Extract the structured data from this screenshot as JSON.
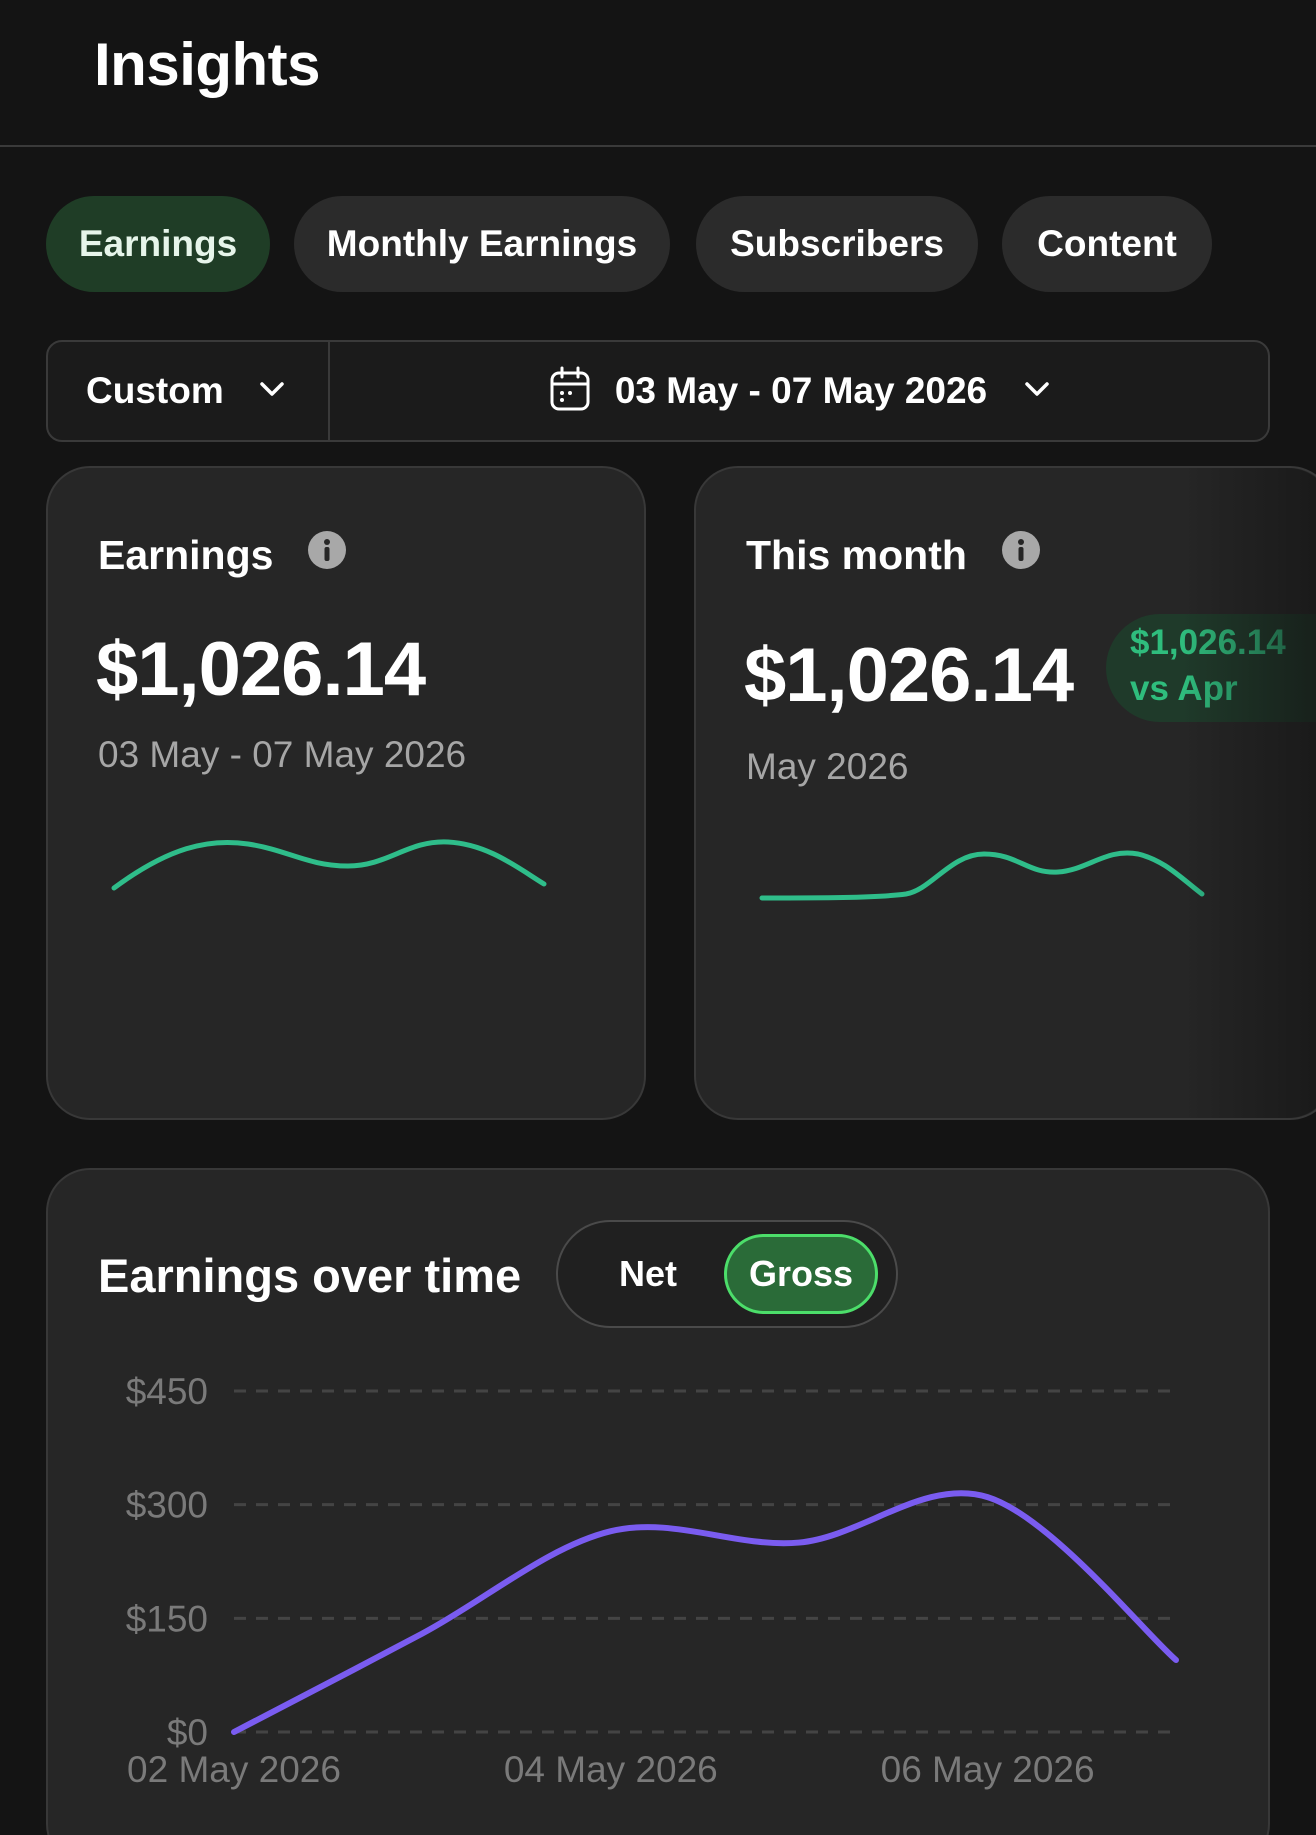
{
  "header": {
    "title": "Insights"
  },
  "tabs": [
    {
      "label": "Earnings",
      "active": true
    },
    {
      "label": "Monthly Earnings",
      "active": false
    },
    {
      "label": "Subscribers",
      "active": false
    },
    {
      "label": "Content",
      "active": false
    }
  ],
  "date_filter": {
    "range_type": "Custom",
    "date_range": "03 May - 07 May 2026",
    "calendar_icon": "calendar-icon",
    "chevron_icon": "chevron-down-icon"
  },
  "cards": {
    "earnings": {
      "title": "Earnings",
      "value": "$1,026.14",
      "period": "03 May - 07 May 2026",
      "info_icon": "info-icon"
    },
    "this_month": {
      "title": "This month",
      "value": "$1,026.14",
      "delta_line1": "$1,026.14",
      "delta_line2": "vs Apr",
      "period": "May 2026",
      "info_icon": "info-icon"
    }
  },
  "earnings_over_time": {
    "title": "Earnings over time",
    "toggle": {
      "net": "Net",
      "gross": "Gross",
      "selected": "Gross"
    }
  },
  "colors": {
    "background": "#141414",
    "card": "#262626",
    "active_tab": "#1f3d26",
    "sparkline": "#2fbd8a",
    "chart_line": "#7a5cf0",
    "delta_text": "#2fbd7d",
    "toggle_active_border": "#4cde6a"
  },
  "chart_data": {
    "type": "line",
    "title": "",
    "xlabel": "",
    "ylabel": "",
    "x": [
      "02 May 2026",
      "03 May 2026",
      "04 May 2026",
      "05 May 2026",
      "06 May 2026",
      "07 May 2026"
    ],
    "x_tick_labels": [
      "02 May 2026",
      "04 May 2026",
      "06 May 2026"
    ],
    "y_ticks": [
      "$0",
      "$150",
      "$300",
      "$450"
    ],
    "ylim": [
      0,
      450
    ],
    "series": [
      {
        "values": [
          0,
          130,
          265,
          250,
          310,
          95
        ]
      }
    ],
    "grid": true,
    "grid_style": "dashed-horizontal"
  }
}
